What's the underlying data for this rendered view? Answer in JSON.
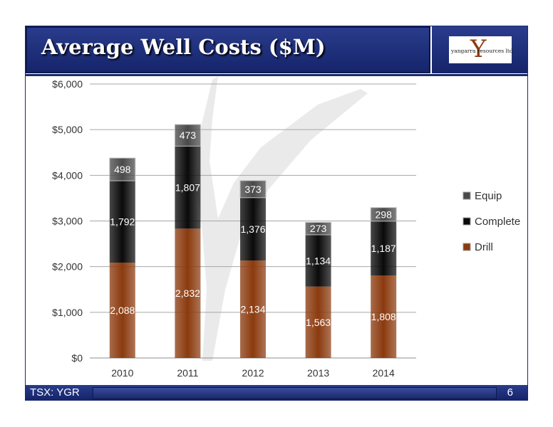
{
  "slide": {
    "title": "Average Well Costs ($M)",
    "logo_text": "yangarra resources ltd.",
    "footer_left": "TSX: YGR",
    "page_number": "6"
  },
  "chart_data": {
    "type": "bar",
    "stacked": true,
    "categories": [
      "2010",
      "2011",
      "2012",
      "2013",
      "2014"
    ],
    "series": [
      {
        "name": "Drill",
        "values": [
          2088,
          2832,
          2134,
          1563,
          1808
        ],
        "labels": [
          "2,088",
          "2,832",
          "2,134",
          "1,563",
          "1,808"
        ],
        "color": "#8b3a0e"
      },
      {
        "name": "Complete",
        "values": [
          1792,
          1807,
          1376,
          1134,
          1187
        ],
        "labels": [
          "1,792",
          "1,807",
          "1,376",
          "1,134",
          "1,187"
        ],
        "color": "#0a0a0a"
      },
      {
        "name": "Equip",
        "values": [
          498,
          473,
          373,
          273,
          298
        ],
        "labels": [
          "498",
          "473",
          "373",
          "273",
          "298"
        ],
        "color": "#4a4a4a"
      }
    ],
    "ylim": [
      0,
      6000
    ],
    "yticks": [
      0,
      1000,
      2000,
      3000,
      4000,
      5000,
      6000
    ],
    "ytick_labels": [
      "$0",
      "$1,000",
      "$2,000",
      "$3,000",
      "$4,000",
      "$5,000",
      "$6,000"
    ],
    "grid": true,
    "legend": {
      "placement": "right",
      "order": [
        "Equip",
        "Complete",
        "Drill"
      ]
    }
  }
}
